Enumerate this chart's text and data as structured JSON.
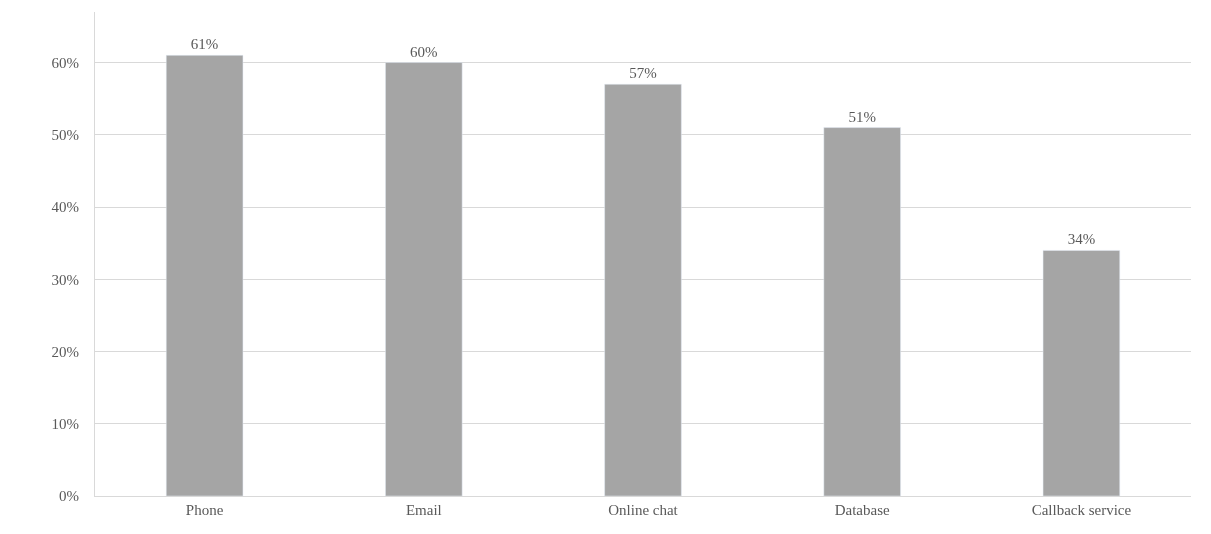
{
  "chart_data": {
    "type": "bar",
    "categories": [
      "Phone",
      "Email",
      "Online chat",
      "Database",
      "Callback service"
    ],
    "values": [
      61,
      60,
      57,
      51,
      34
    ],
    "value_labels": [
      "61%",
      "60%",
      "57%",
      "51%",
      "34%"
    ],
    "color": "#a5a5a5",
    "ylim": [
      0,
      67
    ],
    "yticks": [
      {
        "value": 0,
        "label": "0%"
      },
      {
        "value": 10,
        "label": "10%"
      },
      {
        "value": 20,
        "label": "20%"
      },
      {
        "value": 30,
        "label": "30%"
      },
      {
        "value": 40,
        "label": "40%"
      },
      {
        "value": 50,
        "label": "50%"
      },
      {
        "value": 60,
        "label": "60%"
      }
    ],
    "grid": "y"
  }
}
